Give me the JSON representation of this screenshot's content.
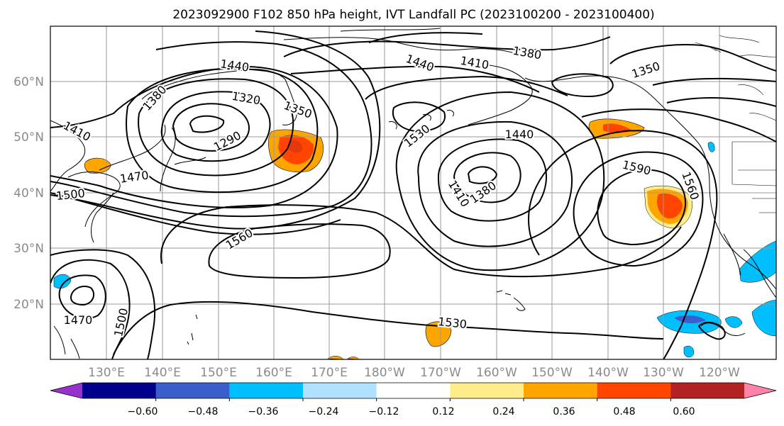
{
  "title": "2023092900 F102 850 hPa height, IVT Landfall PC (2023100200 - 2023100400)",
  "map": {
    "lon_ticks": [
      "130°E",
      "140°E",
      "150°E",
      "160°E",
      "170°E",
      "180°W",
      "170°W",
      "160°W",
      "150°W",
      "140°W",
      "130°W",
      "120°W"
    ],
    "lat_ticks": [
      "60°N",
      "50°N",
      "40°N",
      "30°N",
      "20°N"
    ],
    "grid": true
  },
  "height_contour_labels": [
    "1440",
    "1380",
    "1410",
    "1440",
    "1350",
    "1380",
    "1320",
    "1350",
    "1410",
    "1290",
    "1530",
    "1440",
    "1470",
    "1500",
    "1590",
    "1560",
    "1410",
    "1380",
    "1560",
    "1470",
    "1500",
    "1530"
  ],
  "colorbar": {
    "colors": [
      "#9932cc",
      "#00008b",
      "#3a5fcd",
      "#00bfff",
      "#b0e2ff",
      "#ffffff",
      "#ffec8b",
      "#ffa500",
      "#ff4500",
      "#b22222",
      "#ff82ab"
    ],
    "tick_labels": [
      "−0.60",
      "−0.48",
      "−0.36",
      "−0.24",
      "−0.12",
      "0.12",
      "0.24",
      "0.36",
      "0.48",
      "0.60"
    ]
  }
}
